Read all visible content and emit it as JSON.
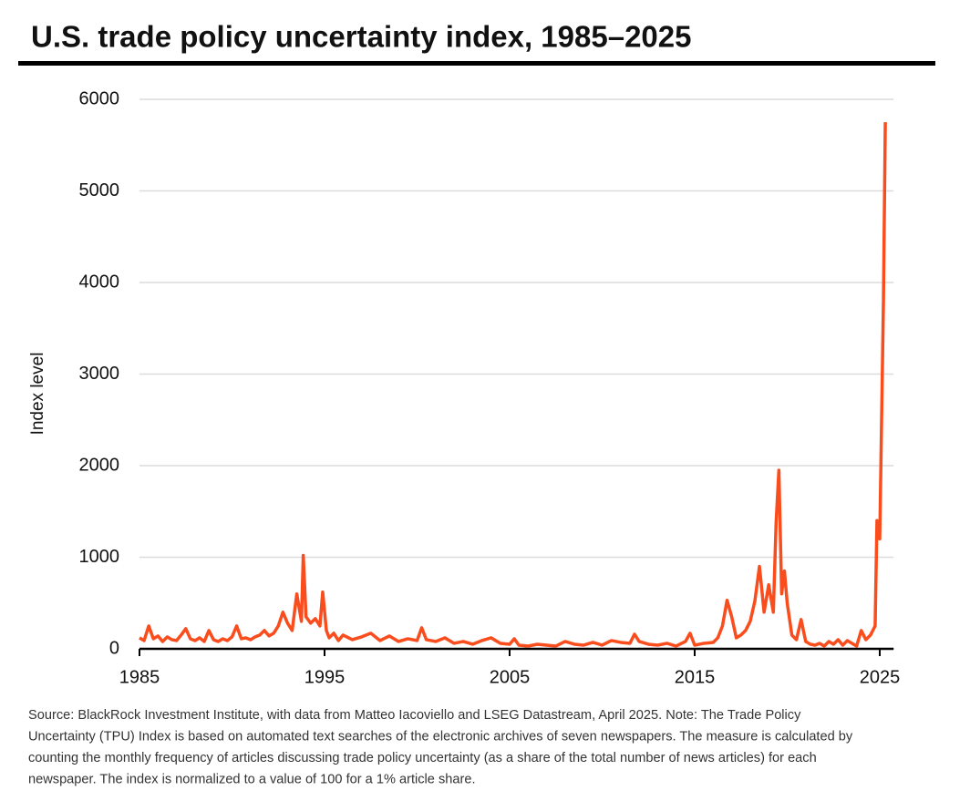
{
  "chart_data": {
    "type": "line",
    "title": "U.S. trade policy uncertainty index, 1985–2025",
    "y_label": "Index level",
    "note": [
      "Source: BlackRock Investment Institute, with data from Matteo Iacoviello and LSEG Datastream, April 2025. Note: The Trade Policy",
      "Uncertainty (TPU) Index is based on automated text searches of the electronic archives of seven newspapers. The measure is calculated by",
      "counting the monthly frequency of articles discussing trade policy uncertainty (as a share of the total number of news articles) for each",
      "newspaper. The index is normalized to a value of 100 for a 1% article share."
    ],
    "color": "#fa4d1e",
    "grid": true,
    "xlim": [
      1985,
      2025.75
    ],
    "xticks": [
      1985,
      1995,
      2005,
      2015,
      2025
    ],
    "ylim": [
      0,
      6000
    ],
    "yticks": [
      0,
      1000,
      2000,
      3000,
      4000,
      5000,
      6000
    ],
    "x": [
      1985,
      1985.25,
      1985.5,
      1985.75,
      1986,
      1986.25,
      1986.5,
      1986.75,
      1987,
      1987.25,
      1987.5,
      1987.75,
      1988,
      1988.25,
      1988.5,
      1988.75,
      1989,
      1989.25,
      1989.5,
      1989.75,
      1990,
      1990.25,
      1990.5,
      1990.75,
      1991,
      1991.25,
      1991.5,
      1991.75,
      1992,
      1992.25,
      1992.5,
      1992.75,
      1993,
      1993.25,
      1993.5,
      1993.75,
      1993.85,
      1994,
      1994.25,
      1994.5,
      1994.75,
      1994.9,
      1995.1,
      1995.25,
      1995.5,
      1995.75,
      1996,
      1996.5,
      1997,
      1997.5,
      1998,
      1998.5,
      1999,
      1999.5,
      2000,
      2000.25,
      2000.5,
      2001,
      2001.5,
      2002,
      2002.5,
      2003,
      2003.5,
      2004,
      2004.5,
      2005,
      2005.25,
      2005.5,
      2006,
      2006.5,
      2007,
      2007.5,
      2008,
      2008.5,
      2009,
      2009.5,
      2010,
      2010.5,
      2011,
      2011.5,
      2011.75,
      2012,
      2012.5,
      2013,
      2013.5,
      2014,
      2014.5,
      2014.75,
      2015,
      2015.5,
      2016,
      2016.25,
      2016.5,
      2016.75,
      2017,
      2017.25,
      2017.5,
      2017.75,
      2018,
      2018.25,
      2018.5,
      2018.75,
      2019,
      2019.25,
      2019.4,
      2019.55,
      2019.7,
      2019.85,
      2020,
      2020.25,
      2020.5,
      2020.75,
      2021,
      2021.25,
      2021.5,
      2021.75,
      2022,
      2022.25,
      2022.5,
      2022.75,
      2023,
      2023.25,
      2023.5,
      2023.75,
      2024,
      2024.25,
      2024.5,
      2024.75,
      2024.85,
      2025,
      2025.1,
      2025.2,
      2025.3
    ],
    "values": [
      120,
      90,
      250,
      110,
      140,
      80,
      130,
      100,
      90,
      150,
      220,
      110,
      90,
      120,
      80,
      200,
      100,
      80,
      110,
      90,
      130,
      250,
      110,
      120,
      100,
      130,
      150,
      200,
      140,
      170,
      250,
      400,
      280,
      200,
      600,
      300,
      1020,
      350,
      280,
      330,
      250,
      620,
      200,
      120,
      170,
      90,
      150,
      100,
      130,
      170,
      90,
      140,
      80,
      110,
      90,
      230,
      100,
      80,
      120,
      60,
      80,
      50,
      90,
      120,
      60,
      50,
      110,
      40,
      30,
      50,
      40,
      30,
      80,
      50,
      40,
      70,
      40,
      90,
      70,
      60,
      160,
      80,
      50,
      40,
      60,
      30,
      80,
      170,
      40,
      60,
      70,
      120,
      250,
      530,
      350,
      120,
      150,
      200,
      300,
      520,
      900,
      400,
      700,
      400,
      1380,
      1950,
      600,
      850,
      500,
      150,
      100,
      320,
      80,
      50,
      40,
      60,
      30,
      80,
      50,
      100,
      40,
      90,
      60,
      30,
      200,
      100,
      150,
      250,
      1400,
      1200,
      2500,
      3800,
      5750
    ]
  }
}
